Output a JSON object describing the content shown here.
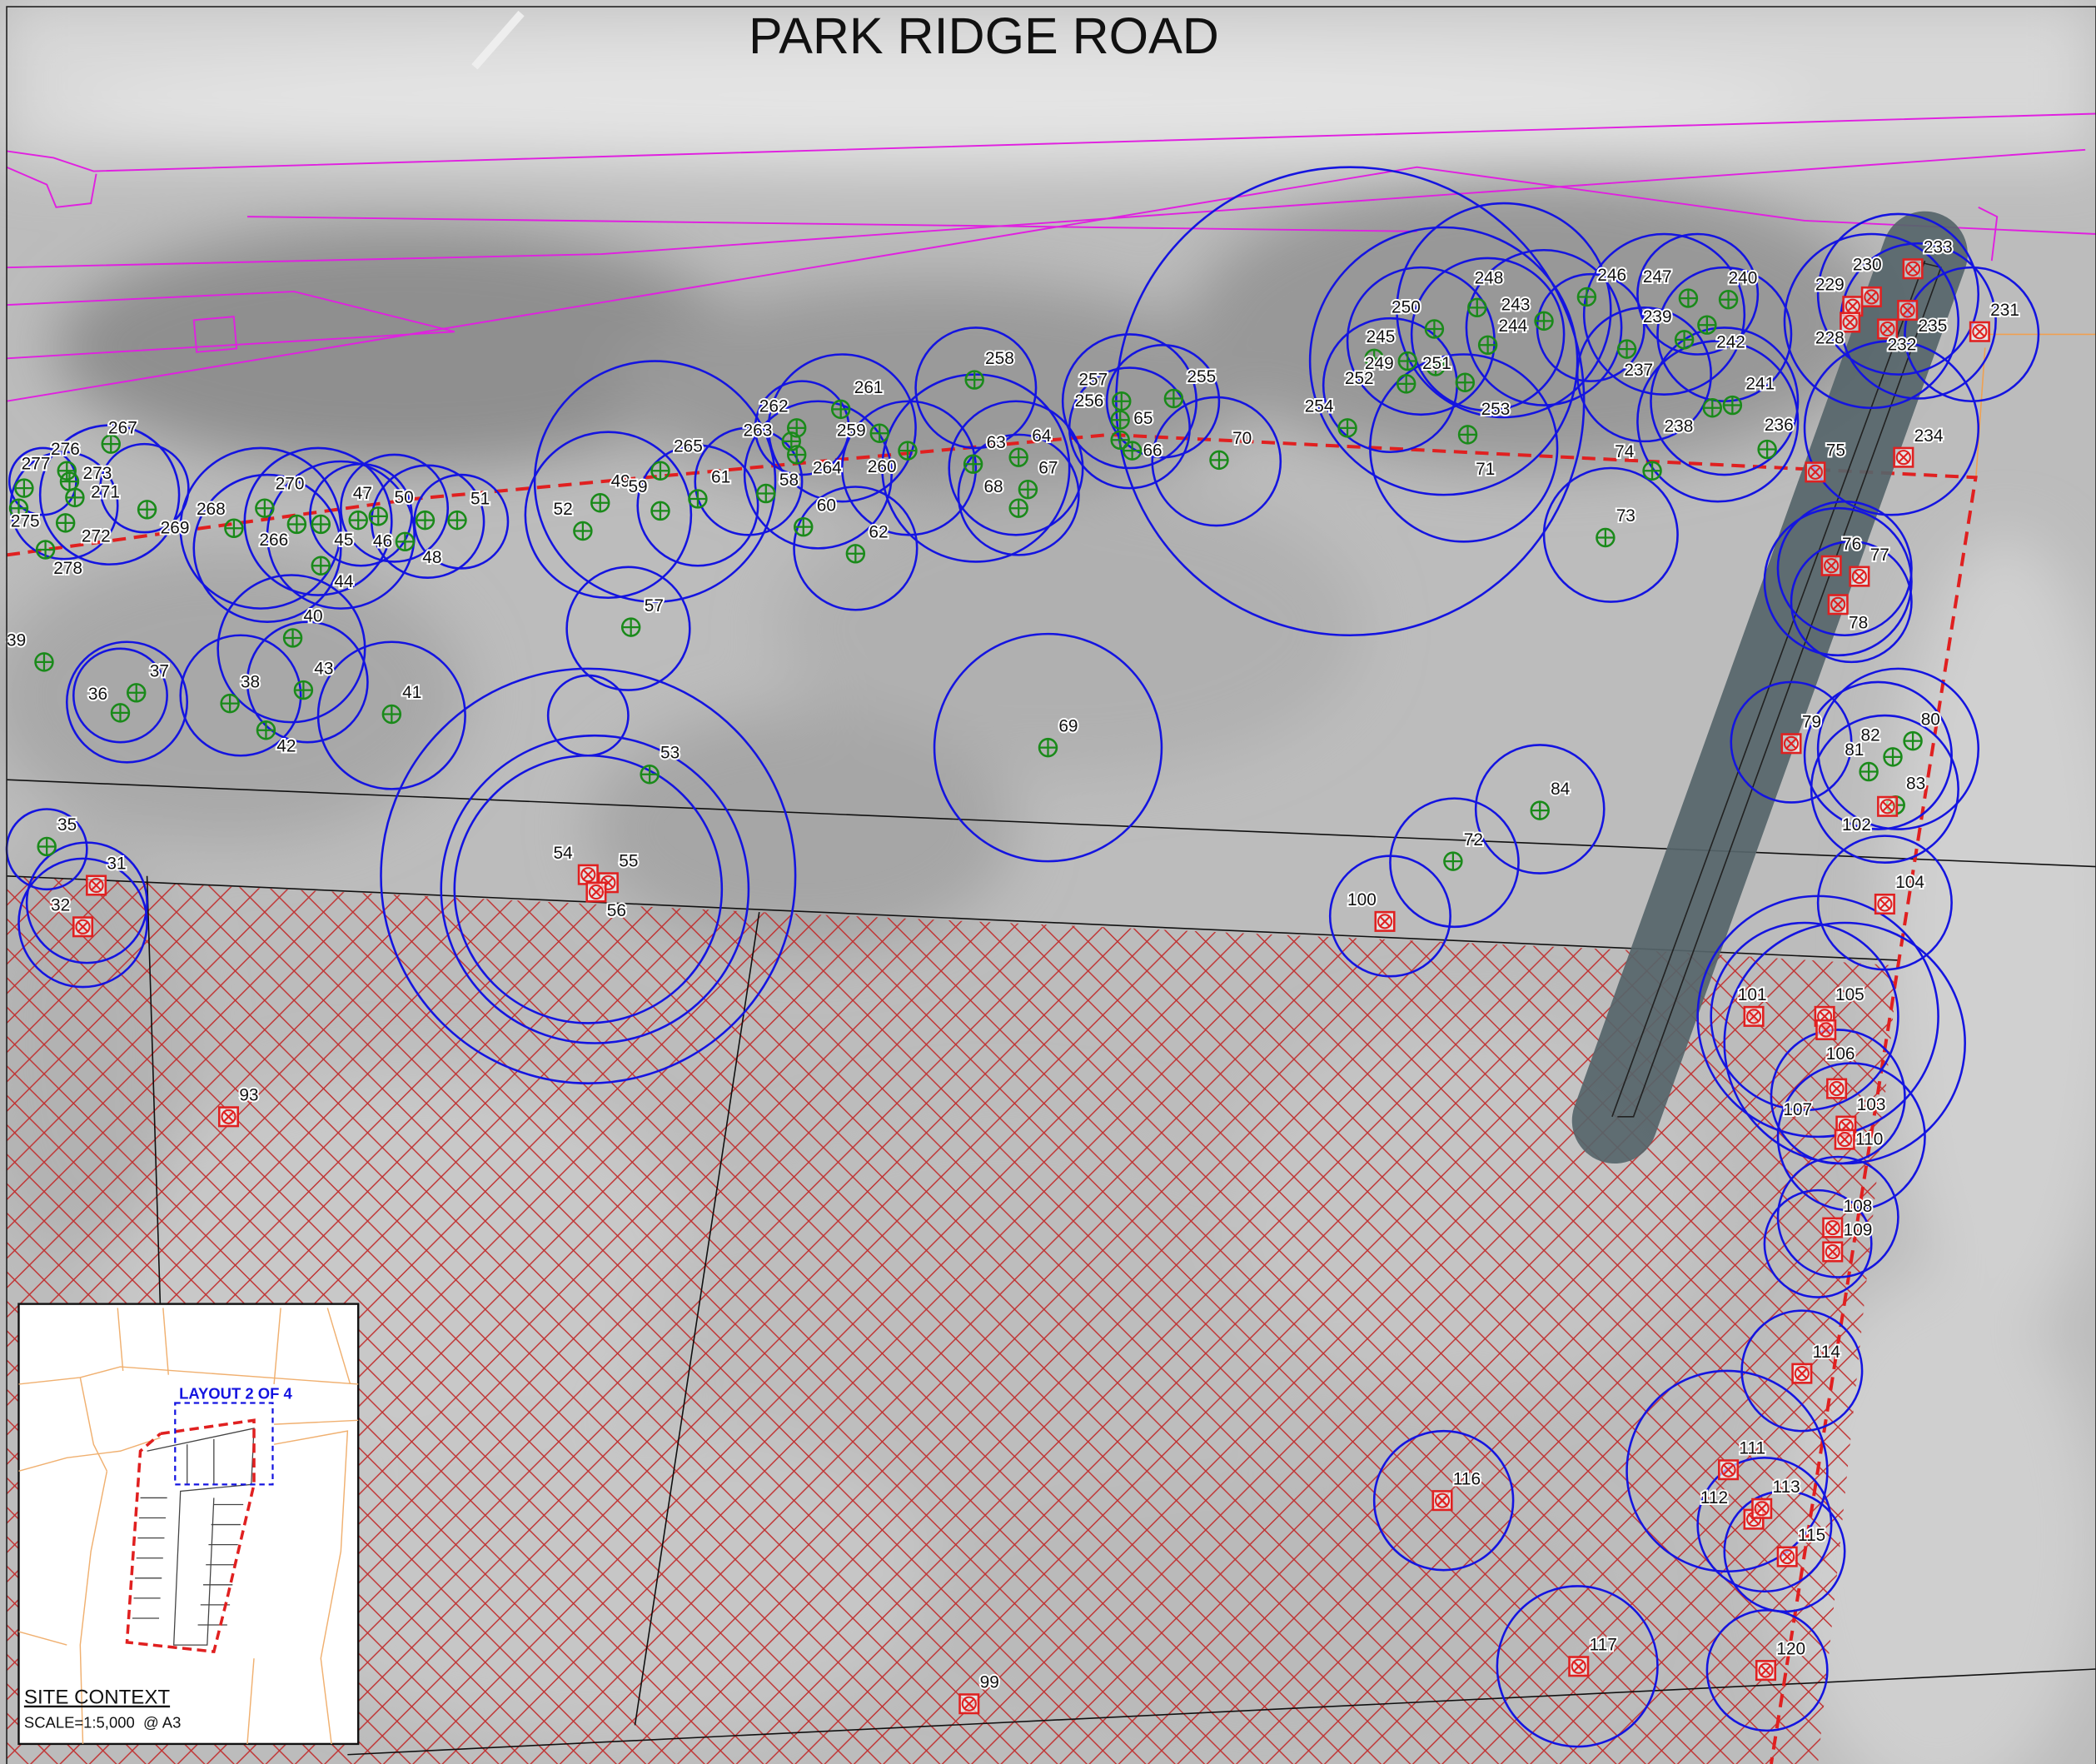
{
  "road_name": "PARK RIDGE ROAD",
  "inset": {
    "layout_label": "LAYOUT 2 OF 4",
    "title": "SITE CONTEXT",
    "scale": "SCALE=1:5,000  @ A3"
  },
  "colors": {
    "retained_tree": "#1a8a1a",
    "removed_tree": "#e02020",
    "canopy_circle": "#1010e0",
    "site_boundary": "#e02020",
    "road_reserve": "#e020e0",
    "hatch": "#c03030",
    "easement": "#5a6468"
  },
  "trees": [
    {
      "id": "267",
      "type": "retain"
    },
    {
      "id": "276",
      "type": "retain"
    },
    {
      "id": "277",
      "type": "retain"
    },
    {
      "id": "273",
      "type": "retain"
    },
    {
      "id": "271",
      "type": "retain"
    },
    {
      "id": "275",
      "type": "retain"
    },
    {
      "id": "272",
      "type": "retain"
    },
    {
      "id": "278",
      "type": "retain"
    },
    {
      "id": "269",
      "type": "retain"
    },
    {
      "id": "268",
      "type": "retain"
    },
    {
      "id": "270",
      "type": "retain"
    },
    {
      "id": "266",
      "type": "retain"
    },
    {
      "id": "47",
      "type": "retain"
    },
    {
      "id": "50",
      "type": "retain"
    },
    {
      "id": "45",
      "type": "retain"
    },
    {
      "id": "46",
      "type": "retain"
    },
    {
      "id": "44",
      "type": "retain"
    },
    {
      "id": "48",
      "type": "retain"
    },
    {
      "id": "51",
      "type": "retain"
    },
    {
      "id": "52",
      "type": "retain"
    },
    {
      "id": "49",
      "type": "retain"
    },
    {
      "id": "59",
      "type": "retain"
    },
    {
      "id": "265",
      "type": "retain"
    },
    {
      "id": "61",
      "type": "retain"
    },
    {
      "id": "262",
      "type": "retain"
    },
    {
      "id": "263",
      "type": "retain"
    },
    {
      "id": "261",
      "type": "retain"
    },
    {
      "id": "259",
      "type": "retain"
    },
    {
      "id": "264",
      "type": "retain"
    },
    {
      "id": "260",
      "type": "retain"
    },
    {
      "id": "58",
      "type": "retain"
    },
    {
      "id": "60",
      "type": "retain"
    },
    {
      "id": "62",
      "type": "retain"
    },
    {
      "id": "258",
      "type": "retain"
    },
    {
      "id": "63",
      "type": "retain"
    },
    {
      "id": "64",
      "type": "retain"
    },
    {
      "id": "67",
      "type": "retain"
    },
    {
      "id": "68",
      "type": "retain"
    },
    {
      "id": "257",
      "type": "retain"
    },
    {
      "id": "256",
      "type": "retain"
    },
    {
      "id": "65",
      "type": "retain"
    },
    {
      "id": "66",
      "type": "retain"
    },
    {
      "id": "255",
      "type": "retain"
    },
    {
      "id": "70",
      "type": "retain"
    },
    {
      "id": "250",
      "type": "retain"
    },
    {
      "id": "245",
      "type": "retain"
    },
    {
      "id": "249",
      "type": "retain"
    },
    {
      "id": "251",
      "type": "retain"
    },
    {
      "id": "252",
      "type": "retain"
    },
    {
      "id": "254",
      "type": "retain"
    },
    {
      "id": "248",
      "type": "retain"
    },
    {
      "id": "243",
      "type": "retain"
    },
    {
      "id": "244",
      "type": "retain"
    },
    {
      "id": "253",
      "type": "retain"
    },
    {
      "id": "71",
      "type": "retain"
    },
    {
      "id": "246",
      "type": "retain"
    },
    {
      "id": "247",
      "type": "retain"
    },
    {
      "id": "240",
      "type": "retain"
    },
    {
      "id": "239",
      "type": "retain"
    },
    {
      "id": "242",
      "type": "retain"
    },
    {
      "id": "237",
      "type": "retain"
    },
    {
      "id": "238",
      "type": "retain"
    },
    {
      "id": "241",
      "type": "retain"
    },
    {
      "id": "236",
      "type": "retain"
    },
    {
      "id": "74",
      "type": "retain"
    },
    {
      "id": "73",
      "type": "retain"
    },
    {
      "id": "57",
      "type": "retain"
    },
    {
      "id": "40",
      "type": "retain"
    },
    {
      "id": "39",
      "type": "retain"
    },
    {
      "id": "37",
      "type": "retain"
    },
    {
      "id": "36",
      "type": "retain"
    },
    {
      "id": "38",
      "type": "retain"
    },
    {
      "id": "43",
      "type": "retain"
    },
    {
      "id": "41",
      "type": "retain"
    },
    {
      "id": "42",
      "type": "retain"
    },
    {
      "id": "53",
      "type": "retain"
    },
    {
      "id": "69",
      "type": "retain"
    },
    {
      "id": "84",
      "type": "retain"
    },
    {
      "id": "72",
      "type": "retain"
    },
    {
      "id": "35",
      "type": "retain"
    },
    {
      "id": "82",
      "type": "retain"
    },
    {
      "id": "80",
      "type": "retain"
    },
    {
      "id": "81",
      "type": "retain"
    },
    {
      "id": "83",
      "type": "retain"
    },
    {
      "id": "229",
      "type": "remove"
    },
    {
      "id": "230",
      "type": "remove"
    },
    {
      "id": "233",
      "type": "remove"
    },
    {
      "id": "228",
      "type": "remove"
    },
    {
      "id": "232",
      "type": "remove"
    },
    {
      "id": "235",
      "type": "remove"
    },
    {
      "id": "231",
      "type": "remove"
    },
    {
      "id": "75",
      "type": "remove"
    },
    {
      "id": "234",
      "type": "remove"
    },
    {
      "id": "76",
      "type": "remove"
    },
    {
      "id": "77",
      "type": "remove"
    },
    {
      "id": "78",
      "type": "remove"
    },
    {
      "id": "79",
      "type": "remove"
    },
    {
      "id": "102",
      "type": "remove"
    },
    {
      "id": "104",
      "type": "remove"
    },
    {
      "id": "101",
      "type": "remove"
    },
    {
      "id": "105",
      "type": "remove"
    },
    {
      "id": "106",
      "type": "remove"
    },
    {
      "id": "107",
      "type": "remove"
    },
    {
      "id": "103",
      "type": "remove"
    },
    {
      "id": "110",
      "type": "remove"
    },
    {
      "id": "108",
      "type": "remove"
    },
    {
      "id": "109",
      "type": "remove"
    },
    {
      "id": "114",
      "type": "remove"
    },
    {
      "id": "111",
      "type": "remove"
    },
    {
      "id": "112",
      "type": "remove"
    },
    {
      "id": "113",
      "type": "remove"
    },
    {
      "id": "115",
      "type": "remove"
    },
    {
      "id": "116",
      "type": "remove"
    },
    {
      "id": "117",
      "type": "remove"
    },
    {
      "id": "120",
      "type": "remove"
    },
    {
      "id": "99",
      "type": "remove"
    },
    {
      "id": "100",
      "type": "remove"
    },
    {
      "id": "93",
      "type": "remove"
    },
    {
      "id": "54",
      "type": "remove"
    },
    {
      "id": "55",
      "type": "remove"
    },
    {
      "id": "56",
      "type": "remove"
    },
    {
      "id": "31",
      "type": "remove"
    },
    {
      "id": "32",
      "type": "remove"
    }
  ]
}
